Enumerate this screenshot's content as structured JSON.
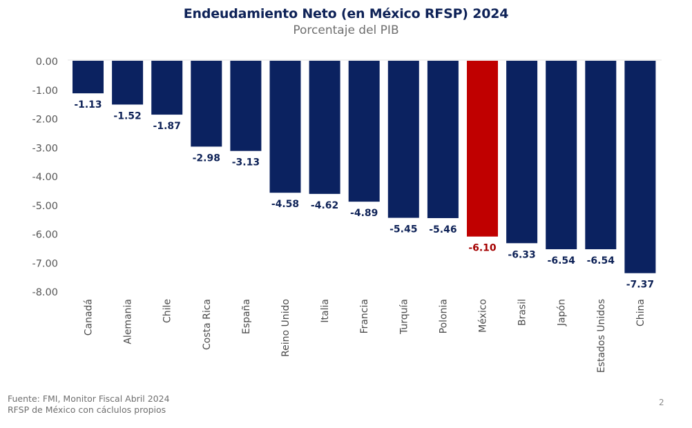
{
  "slide": {
    "title": "Endeudamiento Neto (en México RFSP) 2024",
    "subtitle": "Porcentaje del PIB",
    "footnote_lines": [
      "Fuente: FMI, Monitor Fiscal Abril 2024",
      "RFSP de México con cáclulos propios"
    ],
    "page_number": "2"
  },
  "chart_data": {
    "type": "bar",
    "title": "Endeudamiento Neto (en México RFSP) 2024",
    "subtitle": "Porcentaje del PIB",
    "xlabel": "",
    "ylabel": "",
    "categories": [
      "Canadá",
      "Alemania",
      "Chile",
      "Costa Rica",
      "España",
      "Reino Unido",
      "Italia",
      "Francia",
      "Turquía",
      "Polonia",
      "México",
      "Brasil",
      "Japón",
      "Estados Unidos",
      "China"
    ],
    "values": [
      -1.13,
      -1.52,
      -1.87,
      -2.98,
      -3.13,
      -4.58,
      -4.62,
      -4.89,
      -5.45,
      -5.46,
      -6.1,
      -6.33,
      -6.54,
      -6.54,
      -7.37
    ],
    "data_labels": [
      "-1.13",
      "-1.52",
      "-1.87",
      "-2.98",
      "-3.13",
      "-4.58",
      "-4.62",
      "-4.89",
      "-5.45",
      "-5.46",
      "-6.10",
      "-6.33",
      "-6.54",
      "-6.54",
      "-7.37"
    ],
    "highlight_category": "México",
    "ylim": [
      -8,
      0
    ],
    "yticks": [
      0,
      -1,
      -2,
      -3,
      -4,
      -5,
      -6,
      -7,
      -8
    ],
    "ytick_labels": [
      "0.00",
      "-1.00",
      "-2.00",
      "-3.00",
      "-4.00",
      "-5.00",
      "-6.00",
      "-7.00",
      "-8.00"
    ],
    "grid": false,
    "legend": "none",
    "colors": {
      "default": "#0b2260",
      "highlight": "#c00000",
      "label_default": "#0e2257",
      "label_highlight": "#a50000"
    }
  }
}
